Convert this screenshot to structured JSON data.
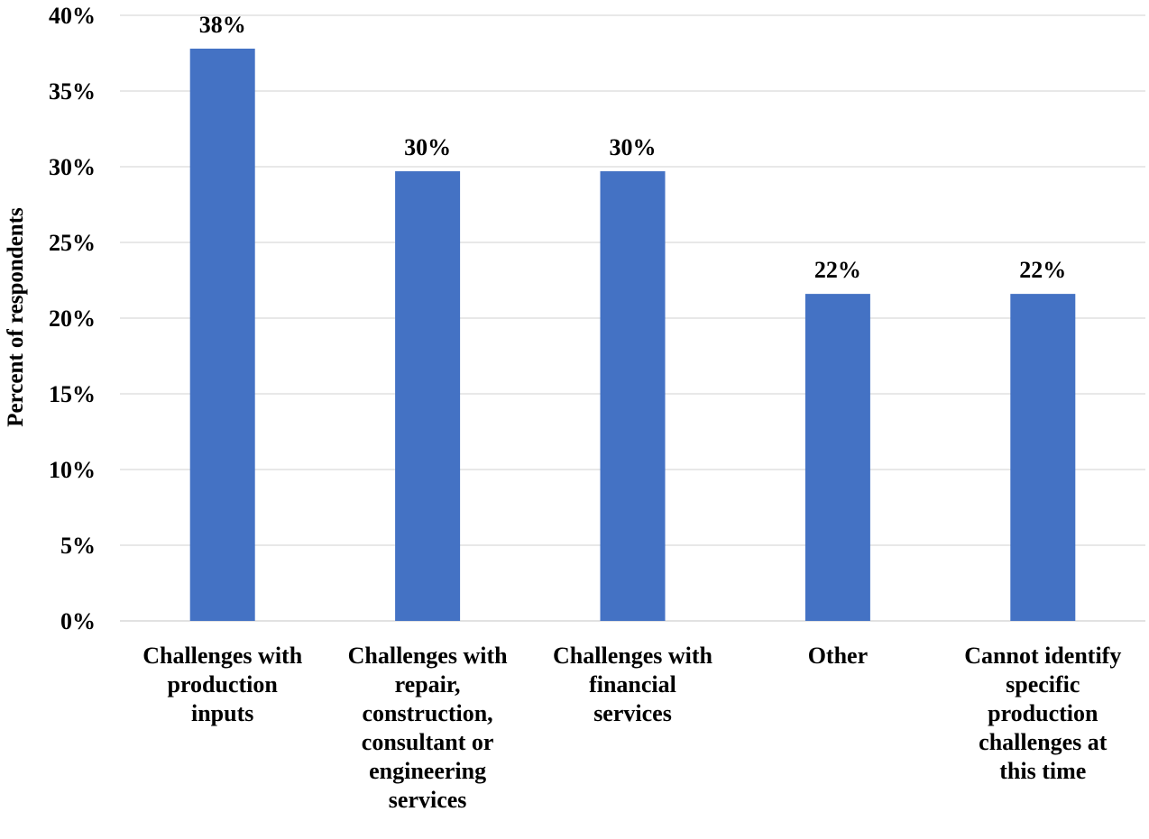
{
  "chart_data": {
    "type": "bar",
    "title": "",
    "xlabel": "",
    "ylabel": "Percent of respondents",
    "ylim": [
      0,
      40
    ],
    "ytick_step": 5,
    "ytick_labels": [
      "0%",
      "5%",
      "10%",
      "15%",
      "20%",
      "25%",
      "30%",
      "35%",
      "40%"
    ],
    "grid": true,
    "legend": "none",
    "bar_color": "#4472C4",
    "grid_color": "#D9D9D9",
    "categories": [
      [
        "Challenges with",
        "production",
        "inputs"
      ],
      [
        "Challenges with",
        "repair,",
        "construction,",
        "consultant or",
        "engineering",
        "services"
      ],
      [
        "Challenges with",
        "financial",
        "services"
      ],
      [
        "Other"
      ],
      [
        "Cannot identify",
        "specific",
        "production",
        "challenges at",
        "this time"
      ]
    ],
    "values": [
      37.8,
      29.7,
      29.7,
      21.6,
      21.6
    ],
    "data_labels": [
      "38%",
      "30%",
      "30%",
      "22%",
      "22%"
    ]
  }
}
